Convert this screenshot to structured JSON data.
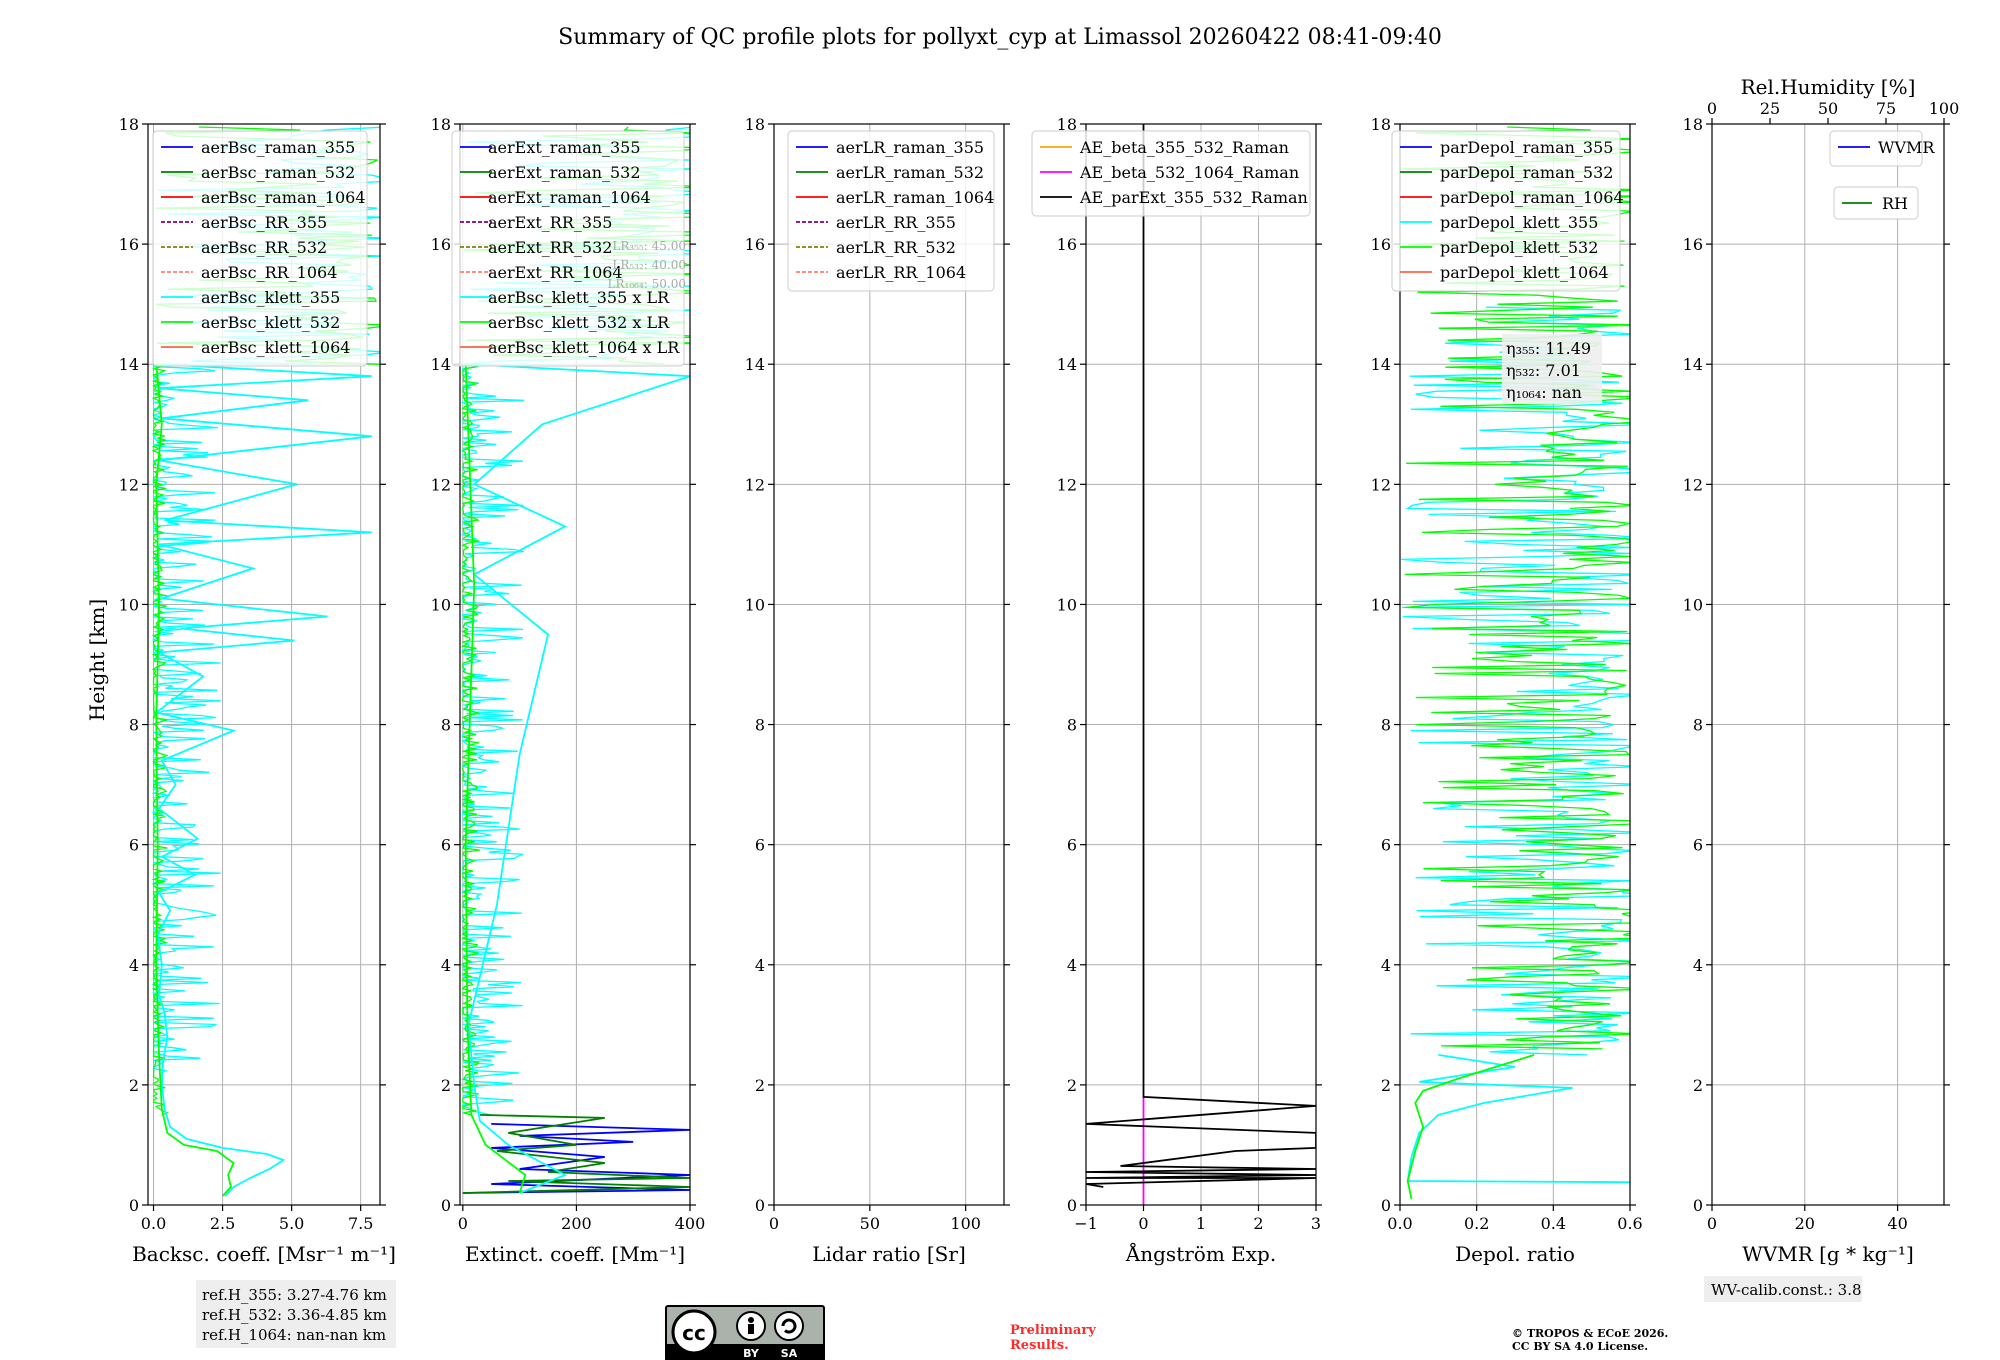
{
  "title": "Summary of QC profile plots for pollyxt_cyp at Limassol 20260422 08:41-09:40",
  "ylabel": "Height [km]",
  "colors": {
    "raman_355": "#0000ff",
    "raman_532": "#008000",
    "raman_1064": "#ff0000",
    "rr_355": "#800080",
    "rr_532": "#808000",
    "rr_1064": "#fa8072",
    "klett_355": "#00ffff",
    "klett_532": "#00ff00",
    "klett_1064": "#ff6347",
    "ae1": "#ffa500",
    "ae2": "#ff00ff",
    "ae3": "#000000"
  },
  "chart_data": [
    {
      "type": "line",
      "id": "bsc",
      "xlabel": "Backsc. coeff. [Msr⁻¹ m⁻¹]",
      "xlim": [
        -0.2,
        8.2
      ],
      "ylim": [
        0,
        18
      ],
      "xticks": [
        0,
        2.5,
        5,
        7.5
      ],
      "xticklabels": [
        "0.0",
        "2.5",
        "5.0",
        "7.5"
      ],
      "yticks": [
        0,
        2,
        4,
        6,
        8,
        10,
        12,
        14,
        16,
        18
      ],
      "legend": [
        "aerBsc_raman_355",
        "aerBsc_raman_532",
        "aerBsc_raman_1064",
        "aerBsc_RR_355",
        "aerBsc_RR_532",
        "aerBsc_RR_1064",
        "aerBsc_klett_355",
        "aerBsc_klett_532",
        "aerBsc_klett_1064"
      ],
      "legend_keys": [
        "raman_355",
        "raman_532",
        "raman_1064",
        "rr_355",
        "rr_532",
        "rr_1064",
        "klett_355",
        "klett_532",
        "klett_1064"
      ],
      "legend_dashed": [
        false,
        false,
        false,
        true,
        true,
        true,
        false,
        false,
        false
      ],
      "series": [
        {
          "name": "aerBsc_klett_355",
          "key": "klett_355",
          "points": [
            [
              2.6,
              0.15
            ],
            [
              2.9,
              0.3
            ],
            [
              3.5,
              0.45
            ],
            [
              4.2,
              0.6
            ],
            [
              4.7,
              0.75
            ],
            [
              4.1,
              0.85
            ],
            [
              2.5,
              0.95
            ],
            [
              1.2,
              1.1
            ],
            [
              0.6,
              1.3
            ],
            [
              0.4,
              1.6
            ],
            [
              0.3,
              2.0
            ],
            [
              0.35,
              2.4
            ],
            [
              0.5,
              2.8
            ],
            [
              0.4,
              3.2
            ],
            [
              0.2,
              3.5
            ],
            [
              0.3,
              4.0
            ],
            [
              0.15,
              4.5
            ],
            [
              0.6,
              4.9
            ],
            [
              0.2,
              5.2
            ],
            [
              1.5,
              5.5
            ],
            [
              0.3,
              5.8
            ],
            [
              1.6,
              6.1
            ],
            [
              0.2,
              6.6
            ],
            [
              0.8,
              7.0
            ],
            [
              0.3,
              7.4
            ],
            [
              2.9,
              7.9
            ],
            [
              0.1,
              8.2
            ],
            [
              1.8,
              8.8
            ],
            [
              0.2,
              9.2
            ],
            [
              5.1,
              9.4
            ],
            [
              1.0,
              9.6
            ],
            [
              6.3,
              9.8
            ],
            [
              0.3,
              10.1
            ],
            [
              3.6,
              10.6
            ],
            [
              0.2,
              11.0
            ],
            [
              7.9,
              11.2
            ],
            [
              0.4,
              11.4
            ],
            [
              5.2,
              12.0
            ],
            [
              0.2,
              12.4
            ],
            [
              7.9,
              12.8
            ],
            [
              0.3,
              13.1
            ],
            [
              5.6,
              13.4
            ],
            [
              0.2,
              13.6
            ],
            [
              7.9,
              13.8
            ],
            [
              0.3,
              14.0
            ]
          ]
        },
        {
          "name": "aerBsc_klett_532",
          "key": "klett_532",
          "points": [
            [
              2.5,
              0.15
            ],
            [
              2.8,
              0.3
            ],
            [
              2.7,
              0.5
            ],
            [
              2.9,
              0.7
            ],
            [
              2.3,
              0.9
            ],
            [
              1.1,
              1.0
            ],
            [
              0.5,
              1.2
            ],
            [
              0.3,
              1.6
            ],
            [
              0.2,
              2.5
            ],
            [
              0.1,
              4.0
            ],
            [
              0.15,
              6.0
            ],
            [
              0.1,
              8.0
            ],
            [
              0.2,
              10.0
            ],
            [
              0.1,
              12.0
            ],
            [
              0.3,
              13.0
            ],
            [
              0.1,
              14.0
            ]
          ]
        }
      ],
      "noise_series": [
        {
          "key": "klett_355",
          "from": 2.2,
          "to": 14.0,
          "max": 2.5
        },
        {
          "key": "klett_532",
          "from": 1.5,
          "to": 14.0,
          "max": 0.5
        },
        {
          "key": "klett_355",
          "from": 14.0,
          "to": 18.0,
          "max": 8.0,
          "dense": true
        },
        {
          "key": "klett_532",
          "from": 14.0,
          "to": 18.0,
          "max": 8.0,
          "dense": true
        }
      ]
    },
    {
      "type": "line",
      "id": "ext",
      "xlabel": "Extinct. coeff. [Mm⁻¹]",
      "xlim": [
        -5,
        400
      ],
      "ylim": [
        0,
        18
      ],
      "xticks": [
        0,
        200,
        400
      ],
      "xticklabels": [
        "0",
        "200",
        "400"
      ],
      "yticks": [
        0,
        2,
        4,
        6,
        8,
        10,
        12,
        14,
        16,
        18
      ],
      "legend": [
        "aerExt_raman_355",
        "aerExt_raman_532",
        "aerExt_raman_1064",
        "aerExt_RR_355",
        "aerExt_RR_532",
        "aerExt_RR_1064",
        "aerBsc_klett_355 x LR",
        "aerBsc_klett_532 x LR",
        "aerBsc_klett_1064 x LR"
      ],
      "legend_keys": [
        "raman_355",
        "raman_532",
        "raman_1064",
        "rr_355",
        "rr_532",
        "rr_1064",
        "klett_355",
        "klett_532",
        "klett_1064"
      ],
      "legend_dashed": [
        false,
        false,
        false,
        true,
        true,
        true,
        false,
        false,
        false
      ],
      "lr_annotations": [
        "LR₃₅₅: 45.00",
        "LR₅₃₂: 40.00",
        "LR₁₀₆₄: 50.00"
      ],
      "series": [
        {
          "name": "aerExt_raman_355",
          "key": "raman_355",
          "points": [
            [
              0,
              0.2
            ],
            [
              400,
              0.25
            ],
            [
              50,
              0.35
            ],
            [
              400,
              0.5
            ],
            [
              100,
              0.6
            ],
            [
              250,
              0.8
            ],
            [
              50,
              0.95
            ],
            [
              300,
              1.05
            ],
            [
              100,
              1.15
            ],
            [
              400,
              1.25
            ],
            [
              50,
              1.35
            ]
          ]
        },
        {
          "name": "aerExt_raman_532",
          "key": "raman_532",
          "points": [
            [
              0,
              0.2
            ],
            [
              400,
              0.3
            ],
            [
              80,
              0.4
            ],
            [
              400,
              0.45
            ],
            [
              150,
              0.55
            ],
            [
              250,
              0.7
            ],
            [
              60,
              0.9
            ],
            [
              200,
              1.0
            ],
            [
              80,
              1.2
            ],
            [
              250,
              1.45
            ],
            [
              30,
              1.5
            ]
          ]
        },
        {
          "name": "aerBsc_klett_355 x LR",
          "key": "klett_355",
          "points": [
            [
              100,
              0.2
            ],
            [
              180,
              0.5
            ],
            [
              80,
              1.0
            ],
            [
              30,
              1.4
            ],
            [
              20,
              2.0
            ],
            [
              10,
              3.0
            ],
            [
              60,
              5.0
            ],
            [
              100,
              7.5
            ],
            [
              150,
              9.5
            ],
            [
              20,
              10.5
            ],
            [
              180,
              11.3
            ],
            [
              20,
              12.0
            ],
            [
              140,
              13.0
            ],
            [
              400,
              13.8
            ],
            [
              10,
              14.0
            ]
          ]
        },
        {
          "name": "aerBsc_klett_532 x LR",
          "key": "klett_532",
          "points": [
            [
              100,
              0.2
            ],
            [
              110,
              0.5
            ],
            [
              40,
              1.0
            ],
            [
              15,
              1.5
            ],
            [
              8,
              3.0
            ],
            [
              5,
              6.0
            ],
            [
              20,
              10.3
            ],
            [
              5,
              14.0
            ]
          ]
        }
      ],
      "noise_series": [
        {
          "key": "klett_355",
          "from": 1.5,
          "to": 14.0,
          "max": 110
        },
        {
          "key": "klett_532",
          "from": 1.5,
          "to": 14.0,
          "max": 30
        },
        {
          "key": "klett_355",
          "from": 14.0,
          "to": 18.0,
          "max": 400,
          "dense": true
        },
        {
          "key": "klett_532",
          "from": 14.0,
          "to": 18.0,
          "max": 400,
          "dense": true
        }
      ]
    },
    {
      "type": "line",
      "id": "lr",
      "xlabel": "Lidar ratio [Sr]",
      "xlim": [
        0,
        120
      ],
      "ylim": [
        0,
        18
      ],
      "xticks": [
        0,
        50,
        100
      ],
      "xticklabels": [
        "0",
        "50",
        "100"
      ],
      "yticks": [
        0,
        2,
        4,
        6,
        8,
        10,
        12,
        14,
        16,
        18
      ],
      "legend": [
        "aerLR_raman_355",
        "aerLR_raman_532",
        "aerLR_raman_1064",
        "aerLR_RR_355",
        "aerLR_RR_532",
        "aerLR_RR_1064"
      ],
      "legend_keys": [
        "raman_355",
        "raman_532",
        "raman_1064",
        "rr_355",
        "rr_532",
        "rr_1064"
      ],
      "legend_dashed": [
        false,
        false,
        false,
        true,
        true,
        true
      ],
      "series": []
    },
    {
      "type": "line",
      "id": "ae",
      "xlabel": "Ångström Exp.",
      "xlim": [
        -1,
        3
      ],
      "ylim": [
        0,
        18
      ],
      "xticks": [
        -1,
        0,
        1,
        2,
        3
      ],
      "xticklabels": [
        "−1",
        "0",
        "1",
        "2",
        "3"
      ],
      "yticks": [
        0,
        2,
        4,
        6,
        8,
        10,
        12,
        14,
        16,
        18
      ],
      "legend": [
        "AE_beta_355_532_Raman",
        "AE_beta_532_1064_Raman",
        "AE_parExt_355_532_Raman"
      ],
      "legend_keys": [
        "ae1",
        "ae2",
        "ae3"
      ],
      "legend_dashed": [
        false,
        false,
        false
      ],
      "series": [
        {
          "name": "AE_beta_532_1064_Raman",
          "key": "ae2",
          "points": [
            [
              0,
              0
            ],
            [
              0,
              1.8
            ]
          ]
        },
        {
          "name": "AE_parExt_355_532_Raman",
          "key": "ae3",
          "points": [
            [
              0,
              18
            ],
            [
              0,
              1.8
            ],
            [
              3,
              1.65
            ],
            [
              -1,
              1.35
            ],
            [
              3,
              1.2
            ],
            [
              3,
              0.95
            ],
            [
              1.6,
              0.9
            ],
            [
              -0.4,
              0.65
            ],
            [
              3,
              0.6
            ],
            [
              -1,
              0.55
            ],
            [
              3,
              0.5
            ],
            [
              -1,
              0.45
            ],
            [
              3,
              0.45
            ],
            [
              -1,
              0.35
            ],
            [
              -0.7,
              0.3
            ]
          ]
        }
      ]
    },
    {
      "type": "line",
      "id": "depol",
      "xlabel": "Depol. ratio",
      "xlim": [
        0,
        0.6
      ],
      "ylim": [
        0,
        18
      ],
      "xticks": [
        0,
        0.2,
        0.4,
        0.6
      ],
      "xticklabels": [
        "0.0",
        "0.2",
        "0.4",
        "0.6"
      ],
      "yticks": [
        0,
        2,
        4,
        6,
        8,
        10,
        12,
        14,
        16,
        18
      ],
      "legend": [
        "parDepol_raman_355",
        "parDepol_raman_532",
        "parDepol_raman_1064",
        "parDepol_klett_355",
        "parDepol_klett_532",
        "parDepol_klett_1064"
      ],
      "legend_keys": [
        "raman_355",
        "raman_532",
        "raman_1064",
        "klett_355",
        "klett_532",
        "klett_1064"
      ],
      "legend_dashed": [
        false,
        false,
        false,
        false,
        false,
        false
      ],
      "eta": [
        "η₃₅₅: 11.49",
        "η₅₃₂: 7.01",
        "η₁₀₆₄: nan"
      ],
      "series": [
        {
          "name": "parDepol_klett_355",
          "key": "klett_355",
          "points": [
            [
              0.6,
              0.38
            ],
            [
              0.02,
              0.4
            ],
            [
              0.03,
              0.8
            ],
            [
              0.05,
              1.2
            ],
            [
              0.1,
              1.5
            ],
            [
              0.22,
              1.7
            ],
            [
              0.45,
              1.95
            ],
            [
              0.05,
              2.05
            ],
            [
              0.3,
              2.3
            ],
            [
              0.1,
              2.5
            ]
          ]
        },
        {
          "name": "parDepol_klett_532",
          "key": "klett_532",
          "points": [
            [
              0.03,
              0.1
            ],
            [
              0.02,
              0.4
            ],
            [
              0.04,
              0.9
            ],
            [
              0.06,
              1.3
            ],
            [
              0.04,
              1.7
            ],
            [
              0.06,
              1.9
            ],
            [
              0.15,
              2.1
            ],
            [
              0.25,
              2.3
            ],
            [
              0.35,
              2.5
            ]
          ]
        }
      ],
      "noise_series": [
        {
          "key": "klett_355",
          "from": 2.5,
          "to": 15.0,
          "max": 0.6,
          "dense": true
        },
        {
          "key": "klett_532",
          "from": 2.6,
          "to": 18.0,
          "max": 0.6,
          "dense": true
        }
      ]
    },
    {
      "type": "line",
      "id": "wv",
      "xlabel": "WVMR [g * kg⁻¹]",
      "xlim": [
        0,
        50
      ],
      "ylim": [
        0,
        18
      ],
      "xticks": [
        0,
        20,
        40
      ],
      "xticklabels": [
        "0",
        "20",
        "40"
      ],
      "yticks": [
        0,
        2,
        4,
        6,
        8,
        10,
        12,
        14,
        16,
        18
      ],
      "top_xlabel": "Rel.Humidity [%]",
      "top_xlim": [
        0,
        100
      ],
      "top_xticks": [
        0,
        25,
        50,
        75,
        100
      ],
      "top_xticklabels": [
        "0",
        "25",
        "50",
        "75",
        "100"
      ],
      "legend": [
        "WVMR"
      ],
      "legend_keys": [
        "raman_355"
      ],
      "legend_dashed": [
        false
      ],
      "legend2": [
        "RH"
      ],
      "legend2_keys": [
        "raman_532"
      ],
      "series": []
    }
  ],
  "refbox": [
    "ref.H_355: 3.27-4.76 km",
    "ref.H_532: 3.36-4.85 km",
    "ref.H_1064: nan-nan km"
  ],
  "wvcalib": "WV-calib.const.: 3.8",
  "preliminary": [
    "Preliminary",
    "Results."
  ],
  "copyright": [
    "© TROPOS & ECoE 2026.",
    "CC BY SA 4.0 License."
  ],
  "cc_badge": {
    "cc": "cc",
    "by": "BY",
    "sa": "SA"
  }
}
